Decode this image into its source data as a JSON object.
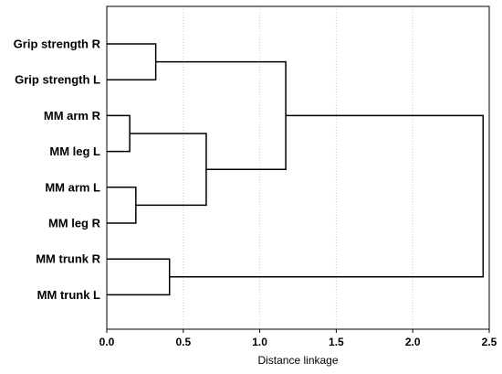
{
  "chart_data": {
    "type": "dendrogram",
    "orientation": "horizontal",
    "title": "",
    "xlabel": "Distance linkage",
    "ylabel": "",
    "xlim": [
      0,
      2.5
    ],
    "xticks": [
      0.0,
      0.5,
      1.0,
      1.5,
      2.0,
      2.5
    ],
    "xtick_labels": [
      "0.0",
      "0.5",
      "1.0",
      "1.5",
      "2.0",
      "2.5"
    ],
    "grid": "vertical dotted",
    "leaves": [
      "Grip strength R",
      "Grip strength L",
      "MM arm R",
      "MM leg L",
      "MM arm L",
      "MM leg R",
      "MM trunk R",
      "MM trunk L"
    ],
    "merges": [
      {
        "left": "leaf:MM arm R",
        "right": "leaf:MM leg L",
        "height": 0.15
      },
      {
        "left": "leaf:MM arm L",
        "right": "leaf:MM leg R",
        "height": 0.19
      },
      {
        "left": "leaf:Grip strength R",
        "right": "leaf:Grip strength L",
        "height": 0.32
      },
      {
        "left": "leaf:MM trunk R",
        "right": "leaf:MM trunk L",
        "height": 0.41
      },
      {
        "left": "merge:0",
        "right": "merge:1",
        "height": 0.65
      },
      {
        "left": "merge:2",
        "right": "merge:4",
        "height": 1.17
      },
      {
        "left": "merge:5",
        "right": "merge:3",
        "height": 2.46
      }
    ]
  }
}
